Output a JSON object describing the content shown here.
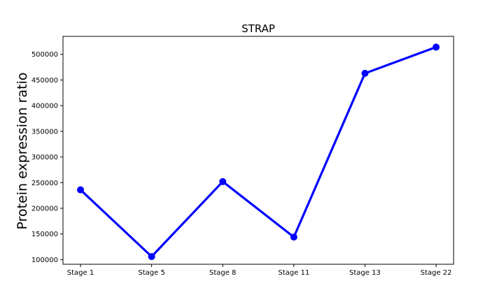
{
  "chart_data": {
    "type": "line",
    "title": "STRAP",
    "xlabel": "",
    "ylabel": "Protein expression ratio",
    "categories": [
      "Stage 1",
      "Stage 5",
      "Stage 8",
      "Stage 11",
      "Stage 13",
      "Stage 22"
    ],
    "series": [
      {
        "values": [
          236000,
          106000,
          252000,
          144000,
          463000,
          514000
        ],
        "color": "#0000ff"
      }
    ],
    "yticks": [
      100000,
      150000,
      200000,
      250000,
      300000,
      350000,
      400000,
      450000,
      500000
    ],
    "ytick_labels": [
      "100000",
      "150000",
      "200000",
      "250000",
      "300000",
      "350000",
      "400000",
      "450000",
      "500000"
    ],
    "ylim": [
      91000,
      535000
    ],
    "grid": false,
    "legend": "none"
  }
}
